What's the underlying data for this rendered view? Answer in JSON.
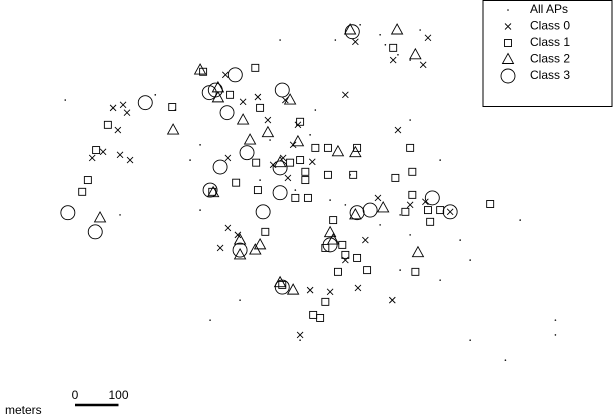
{
  "chart_data": {
    "type": "scatter",
    "legend": "upper right",
    "xlim": [
      0,
      1414
    ],
    "ylim": [
      0,
      961
    ],
    "scale_bar": {
      "label": "meters",
      "ticks": [
        0,
        100
      ]
    },
    "series": [
      {
        "name": "All APs",
        "marker": "dot",
        "color": "#000000",
        "x": [
          828,
          874,
          886,
          915,
          943,
          771,
          966,
          644,
          150,
          357,
          403,
          460,
          437,
          621,
          713,
          679,
          759,
          794,
          874,
          920,
          943,
          1058,
          1081,
          1196,
          1277,
          1277,
          1162,
          1081,
          552,
          690,
          483,
          598,
          725,
          943,
          1012,
          805,
          276,
          460,
          920,
          1012
        ],
        "values": [
          904,
          881,
          858,
          835,
          823,
          869,
          892,
          869,
          731,
          743,
          708,
          628,
          593,
          639,
          651,
          524,
          501,
          490,
          444,
          467,
          421,
          409,
          363,
          455,
          225,
          191,
          133,
          179,
          271,
          179,
          225,
          547,
          708,
          685,
          593,
          559,
          467,
          478,
          340,
          317
        ]
      },
      {
        "name": "Class 0",
        "marker": "x",
        "color": "#000000",
        "x": [
          817,
          984,
          904,
          973,
          518,
          794,
          283,
          260,
          292,
          271,
          237,
          276,
          299,
          212,
          559,
          593,
          616,
          656,
          685,
          674,
          651,
          628,
          662,
          524,
          718,
          915,
          869,
          943,
          978,
          547,
          506,
          840,
          794,
          713,
          759,
          823,
          902,
          690,
          1035,
          524
        ],
        "values": [
          865,
          874,
          823,
          812,
          789,
          743,
          720,
          713,
          702,
          662,
          612,
          605,
          593,
          598,
          727,
          738,
          685,
          731,
          674,
          628,
          598,
          582,
          552,
          598,
          589,
          662,
          506,
          490,
          497,
          421,
          391,
          409,
          363,
          294,
          290,
          299,
          271,
          191,
          474,
          437
        ]
      },
      {
        "name": "Class 1",
        "marker": "square",
        "color": "#000000",
        "x": [
          904,
          467,
          587,
          529,
          598,
          690,
          754,
          725,
          821,
          396,
          248,
          221,
          202,
          189,
          589,
          702,
          679,
          708,
          702,
          754,
          543,
          593,
          943,
          948,
          667,
          812,
          610,
          909,
          932,
          984,
          1012,
          989,
          948,
          1127,
          766,
          748,
          787,
          794,
          821,
          844,
          777,
          955,
          748,
          720,
          736,
          649,
          690,
          488
        ],
        "values": [
          851,
          796,
          805,
          743,
          713,
          681,
          621,
          621,
          621,
          715,
          674,
          616,
          547,
          520,
          587,
          566,
          506,
          506,
          547,
          559,
          541,
          524,
          621,
          566,
          587,
          559,
          428,
          552,
          474,
          478,
          478,
          451,
          513,
          492,
          455,
          391,
          398,
          375,
          368,
          340,
          336,
          336,
          267,
          237,
          230,
          306,
          593,
          520
        ]
      },
      {
        "name": "Class 2",
        "marker": "triangle",
        "color": "#000000",
        "x": [
          913,
          955,
          805,
          460,
          501,
          501,
          398,
          616,
          559,
          575,
          667,
          685,
          777,
          817,
          490,
          644,
          881,
          817,
          759,
          766,
          552,
          552,
          598,
          587,
          230,
          961,
          644,
          674
        ],
        "values": [
          892,
          835,
          892,
          800,
          759,
          736,
          662,
          656,
          685,
          639,
          731,
          635,
          612,
          610,
          518,
          587,
          483,
          467,
          426,
          409,
          409,
          375,
          398,
          386,
          460,
          380,
          311,
          294
        ]
      },
      {
        "name": "Class 3",
        "marker": "circle",
        "color": "#000000",
        "x": [
          810,
          541,
          495,
          481,
          522,
          649,
          334,
          568,
          506,
          483,
          644,
          644,
          605,
          851,
          994,
          821,
          1035,
          156,
          219,
          552,
          759,
          649
        ],
        "values": [
          888,
          789,
          754,
          748,
          702,
          754,
          725,
          610,
          577,
          524,
          575,
          518,
          474,
          478,
          506,
          472,
          474,
          472,
          428,
          386,
          398,
          301
        ]
      }
    ]
  }
}
